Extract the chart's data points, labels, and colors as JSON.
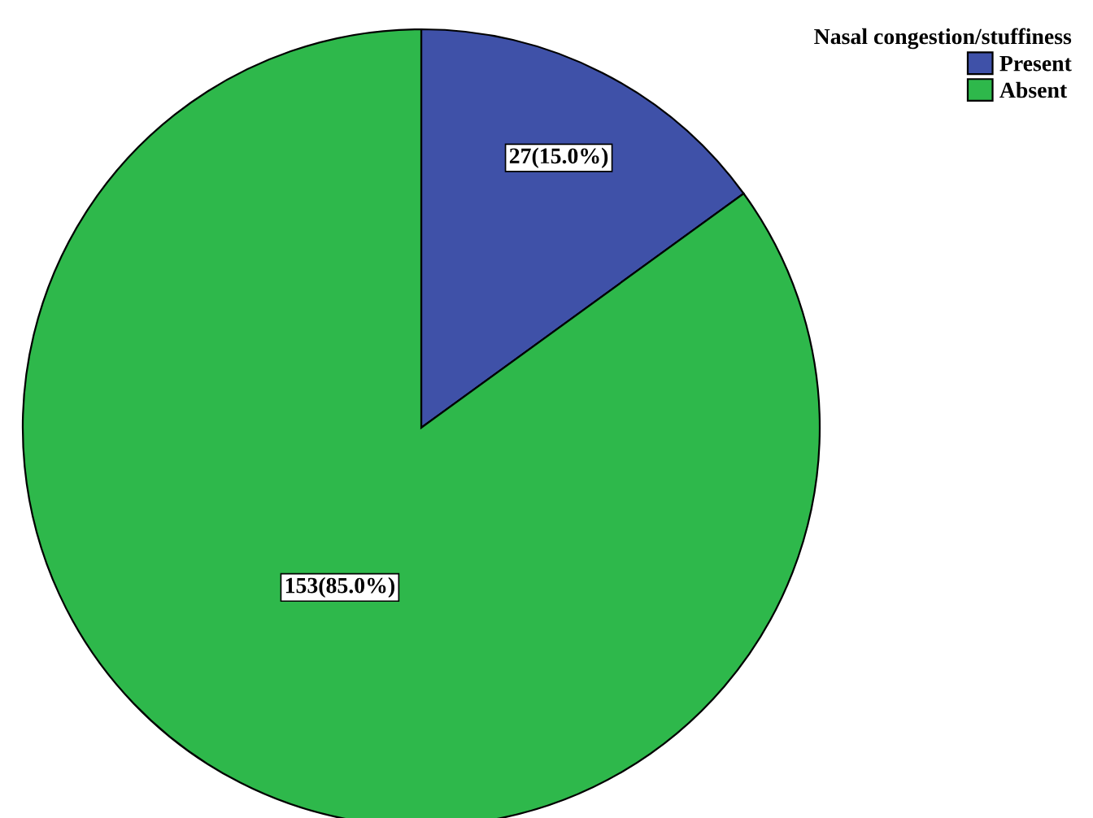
{
  "chart_data": {
    "type": "pie",
    "legend_title": "Nasal congestion/stuffiness",
    "categories": [
      "Present",
      "Absent"
    ],
    "values": [
      27,
      153
    ],
    "colors": [
      "#3f51a8",
      "#2eb84b"
    ],
    "value_labels": [
      "27(15.0%)",
      "153(85.0%)"
    ],
    "legend": "top right"
  }
}
